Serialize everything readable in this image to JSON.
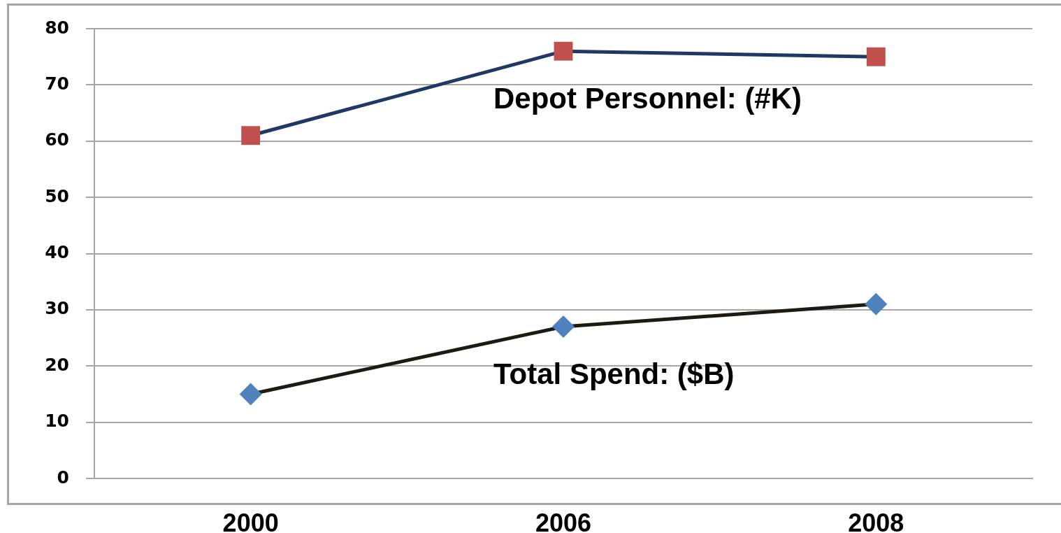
{
  "chart_data": {
    "type": "line",
    "categories": [
      "2000",
      "2006",
      "2008"
    ],
    "series": [
      {
        "name": "Depot Personnel: (#K)",
        "color": "#1f3864",
        "colors": [
          "#c0504d",
          "#c0504d",
          "#c0504d"
        ],
        "marker": "square",
        "values": [
          61,
          76,
          75
        ]
      },
      {
        "name": "Total Spend: ($B)",
        "color": "#1d1b11",
        "colors": [
          "#4f81bd",
          "#4f81bd",
          "#4f81bd"
        ],
        "marker": "diamond",
        "values": [
          15,
          27,
          31
        ]
      }
    ],
    "ylim": [
      0,
      80
    ],
    "yticks": [
      0,
      10,
      20,
      30,
      40,
      50,
      60,
      70,
      80
    ],
    "grid": "y",
    "legend": false
  }
}
